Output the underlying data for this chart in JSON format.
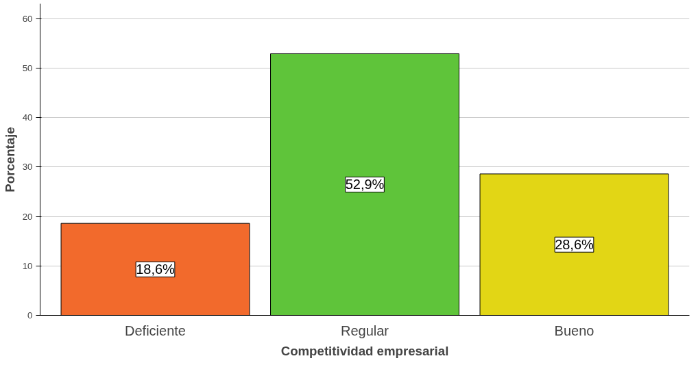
{
  "chart_data": {
    "type": "bar",
    "xlabel": "Competitividad empresarial",
    "ylabel": "Porcentaje",
    "categories": [
      "Deficiente",
      "Regular",
      "Bueno"
    ],
    "values": [
      18.6,
      52.9,
      28.6
    ],
    "colors": [
      "#f26a2c",
      "#5fc43a",
      "#e2d615"
    ],
    "value_labels": [
      "18,6%",
      "52,9%",
      "28,6%"
    ],
    "ylim": [
      0,
      63
    ],
    "yticks": [
      0,
      10,
      20,
      30,
      40,
      50,
      60
    ],
    "grid": "y"
  }
}
